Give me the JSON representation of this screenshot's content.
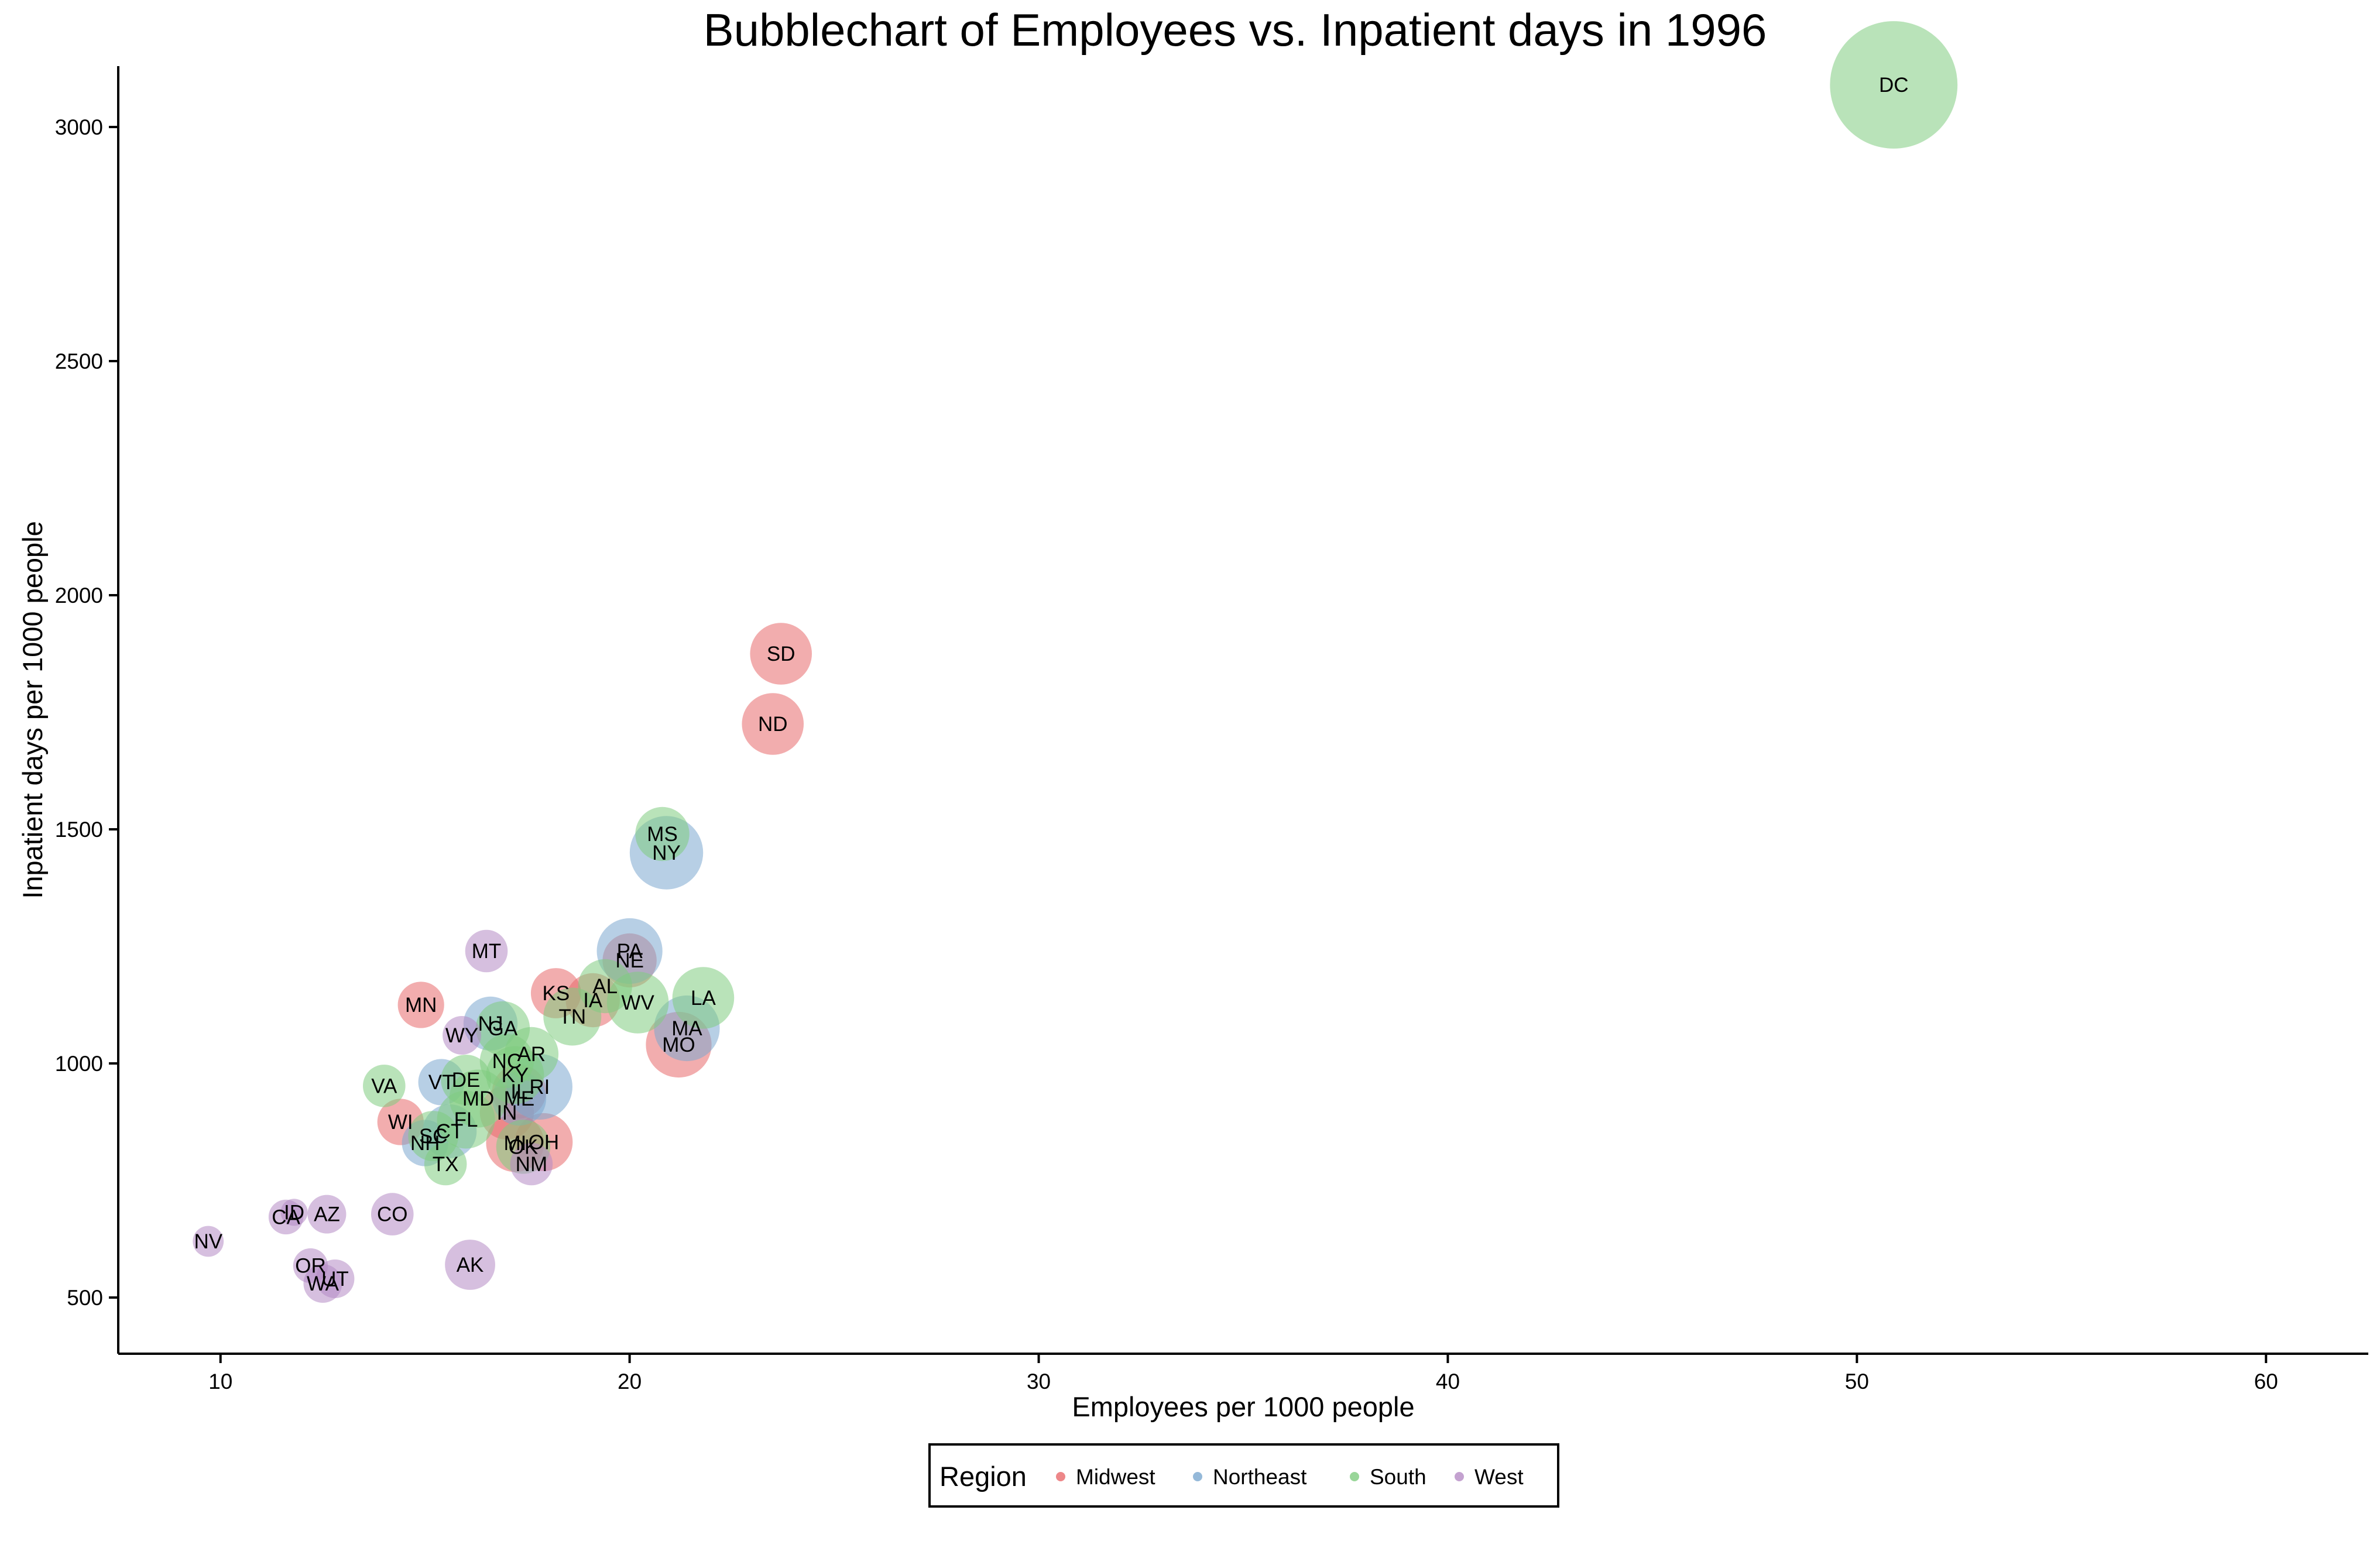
{
  "chart_data": {
    "type": "scatter",
    "title": "Bubblechart of Employees vs. Inpatient days in 1996",
    "xlabel": "Employees per 1000 people",
    "ylabel": "Inpatient days per 1000 people",
    "xlim": [
      7.5,
      62.5
    ],
    "ylim": [
      380,
      3130
    ],
    "xticks": [
      10,
      20,
      30,
      40,
      50,
      60
    ],
    "yticks": [
      500,
      1000,
      1500,
      2000,
      2500,
      3000
    ],
    "grid": false,
    "legend": {
      "title": "Region",
      "placement": "bottom",
      "entries": [
        {
          "name": "Midwest",
          "color": "#e8696b"
        },
        {
          "name": "Northeast",
          "color": "#7ba7d0"
        },
        {
          "name": "South",
          "color": "#7fcc7f"
        },
        {
          "name": "West",
          "color": "#b58bc4"
        }
      ]
    },
    "series": [
      {
        "name": "Midwest",
        "color": "#e8696b",
        "points": [
          {
            "label": "SD",
            "x": 23.7,
            "y": 1875,
            "size": 16
          },
          {
            "label": "ND",
            "x": 23.5,
            "y": 1725,
            "size": 16
          },
          {
            "label": "MN",
            "x": 14.9,
            "y": 1125,
            "size": 12
          },
          {
            "label": "KS",
            "x": 18.2,
            "y": 1150,
            "size": 13
          },
          {
            "label": "IA",
            "x": 19.1,
            "y": 1135,
            "size": 14
          },
          {
            "label": "NE",
            "x": 20.0,
            "y": 1220,
            "size": 14
          },
          {
            "label": "MO",
            "x": 21.2,
            "y": 1040,
            "size": 17
          },
          {
            "label": "WI",
            "x": 14.4,
            "y": 875,
            "size": 12
          },
          {
            "label": "IN",
            "x": 17.0,
            "y": 895,
            "size": 14
          },
          {
            "label": "IL",
            "x": 17.3,
            "y": 940,
            "size": 14
          },
          {
            "label": "MI",
            "x": 17.2,
            "y": 830,
            "size": 15
          },
          {
            "label": "OH",
            "x": 17.9,
            "y": 832,
            "size": 15
          }
        ]
      },
      {
        "name": "Northeast",
        "color": "#7ba7d0",
        "points": [
          {
            "label": "NY",
            "x": 20.9,
            "y": 1450,
            "size": 19
          },
          {
            "label": "PA",
            "x": 20.0,
            "y": 1240,
            "size": 17
          },
          {
            "label": "MA",
            "x": 21.4,
            "y": 1075,
            "size": 17
          },
          {
            "label": "NJ",
            "x": 16.6,
            "y": 1085,
            "size": 14
          },
          {
            "label": "RI",
            "x": 17.8,
            "y": 950,
            "size": 17
          },
          {
            "label": "VT",
            "x": 15.4,
            "y": 960,
            "size": 12
          },
          {
            "label": "ME",
            "x": 17.3,
            "y": 925,
            "size": 14
          },
          {
            "label": "CT",
            "x": 15.6,
            "y": 855,
            "size": 14
          },
          {
            "label": "NH",
            "x": 15.0,
            "y": 830,
            "size": 12
          }
        ]
      },
      {
        "name": "South",
        "color": "#7fcc7f",
        "points": [
          {
            "label": "DC",
            "x": 50.9,
            "y": 3090,
            "size": 33
          },
          {
            "label": "MS",
            "x": 20.8,
            "y": 1490,
            "size": 14
          },
          {
            "label": "LA",
            "x": 21.8,
            "y": 1140,
            "size": 16
          },
          {
            "label": "AL",
            "x": 19.4,
            "y": 1165,
            "size": 14
          },
          {
            "label": "WV",
            "x": 20.2,
            "y": 1130,
            "size": 16
          },
          {
            "label": "TN",
            "x": 18.6,
            "y": 1100,
            "size": 15
          },
          {
            "label": "GA",
            "x": 16.9,
            "y": 1075,
            "size": 14
          },
          {
            "label": "AR",
            "x": 17.6,
            "y": 1020,
            "size": 14
          },
          {
            "label": "NC",
            "x": 17.0,
            "y": 1005,
            "size": 14
          },
          {
            "label": "KY",
            "x": 17.2,
            "y": 975,
            "size": 15
          },
          {
            "label": "DE",
            "x": 16.0,
            "y": 965,
            "size": 13
          },
          {
            "label": "MD",
            "x": 16.3,
            "y": 925,
            "size": 15
          },
          {
            "label": "FL",
            "x": 16.0,
            "y": 880,
            "size": 15
          },
          {
            "label": "SC",
            "x": 15.2,
            "y": 845,
            "size": 13
          },
          {
            "label": "VA",
            "x": 14.0,
            "y": 952,
            "size": 11
          },
          {
            "label": "TX",
            "x": 15.5,
            "y": 785,
            "size": 11
          },
          {
            "label": "OK",
            "x": 17.4,
            "y": 822,
            "size": 14
          }
        ]
      },
      {
        "name": "West",
        "color": "#b58bc4",
        "points": [
          {
            "label": "MT",
            "x": 16.5,
            "y": 1240,
            "size": 11
          },
          {
            "label": "WY",
            "x": 15.9,
            "y": 1060,
            "size": 10
          },
          {
            "label": "NM",
            "x": 17.6,
            "y": 785,
            "size": 11
          },
          {
            "label": "CO",
            "x": 14.2,
            "y": 678,
            "size": 11
          },
          {
            "label": "AZ",
            "x": 12.6,
            "y": 678,
            "size": 10
          },
          {
            "label": "ID",
            "x": 11.8,
            "y": 682,
            "size": 7
          },
          {
            "label": "CA",
            "x": 11.6,
            "y": 672,
            "size": 9
          },
          {
            "label": "NV",
            "x": 9.7,
            "y": 620,
            "size": 8
          },
          {
            "label": "AK",
            "x": 16.1,
            "y": 570,
            "size": 13
          },
          {
            "label": "OR",
            "x": 12.2,
            "y": 568,
            "size": 9
          },
          {
            "label": "UT",
            "x": 12.8,
            "y": 540,
            "size": 10
          },
          {
            "label": "WA",
            "x": 12.5,
            "y": 530,
            "size": 10
          }
        ]
      }
    ]
  }
}
